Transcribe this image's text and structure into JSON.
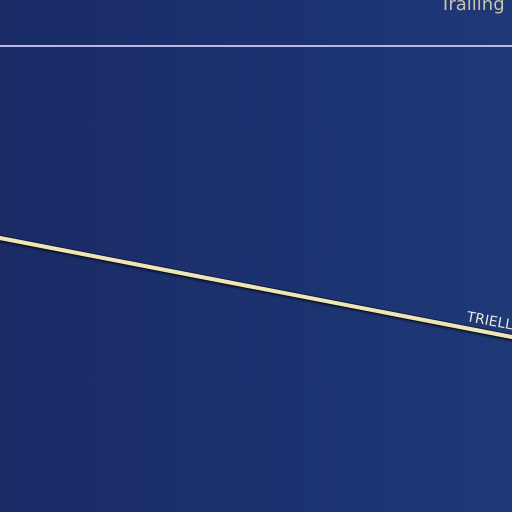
{
  "chart_data": {
    "type": "line",
    "title": "",
    "xlabel": "",
    "ylabel": "",
    "grid": false,
    "legend": "none",
    "reference_line": {
      "label": "Trailing",
      "color": "#b7b8e8"
    },
    "series": [
      {
        "name": "TRIELL",
        "color": "#efe6b5",
        "x": [
          0,
          1
        ],
        "y": [
          1,
          0.4
        ]
      }
    ]
  }
}
